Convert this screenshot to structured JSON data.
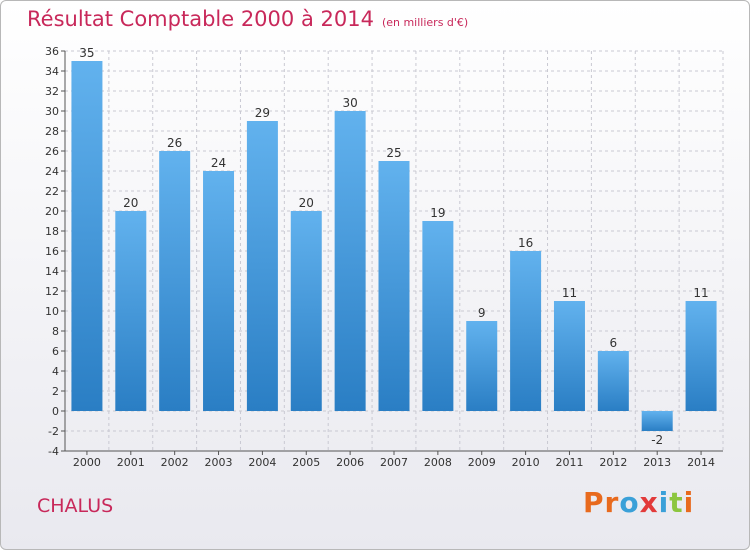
{
  "header": {
    "title": "Résultat Comptable 2000 à 2014",
    "subtitle": "(en milliers d'€)"
  },
  "footer": {
    "town": "CHALUS",
    "logo": "Proxiti"
  },
  "colors": {
    "title": "#c8285a",
    "bar_top": "#62b2ee",
    "bar_bottom": "#2a7ec4",
    "logo_letters": [
      "#e86a1d",
      "#e86a1d",
      "#3aa0d8",
      "#e23a3a",
      "#3aa0d8",
      "#8cc63f",
      "#e86a1d"
    ]
  },
  "chart_data": {
    "type": "bar",
    "categories": [
      "2000",
      "2001",
      "2002",
      "2003",
      "2004",
      "2005",
      "2006",
      "2007",
      "2008",
      "2009",
      "2010",
      "2011",
      "2012",
      "2013",
      "2014"
    ],
    "values": [
      35,
      20,
      26,
      24,
      29,
      20,
      30,
      25,
      19,
      9,
      16,
      11,
      6,
      -2,
      11
    ],
    "ylim": [
      -4,
      36
    ],
    "yticks": [
      -4,
      -2,
      0,
      2,
      4,
      6,
      8,
      10,
      12,
      14,
      16,
      18,
      20,
      22,
      24,
      26,
      28,
      30,
      32,
      34,
      36
    ],
    "grid": true,
    "data_labels": true
  }
}
